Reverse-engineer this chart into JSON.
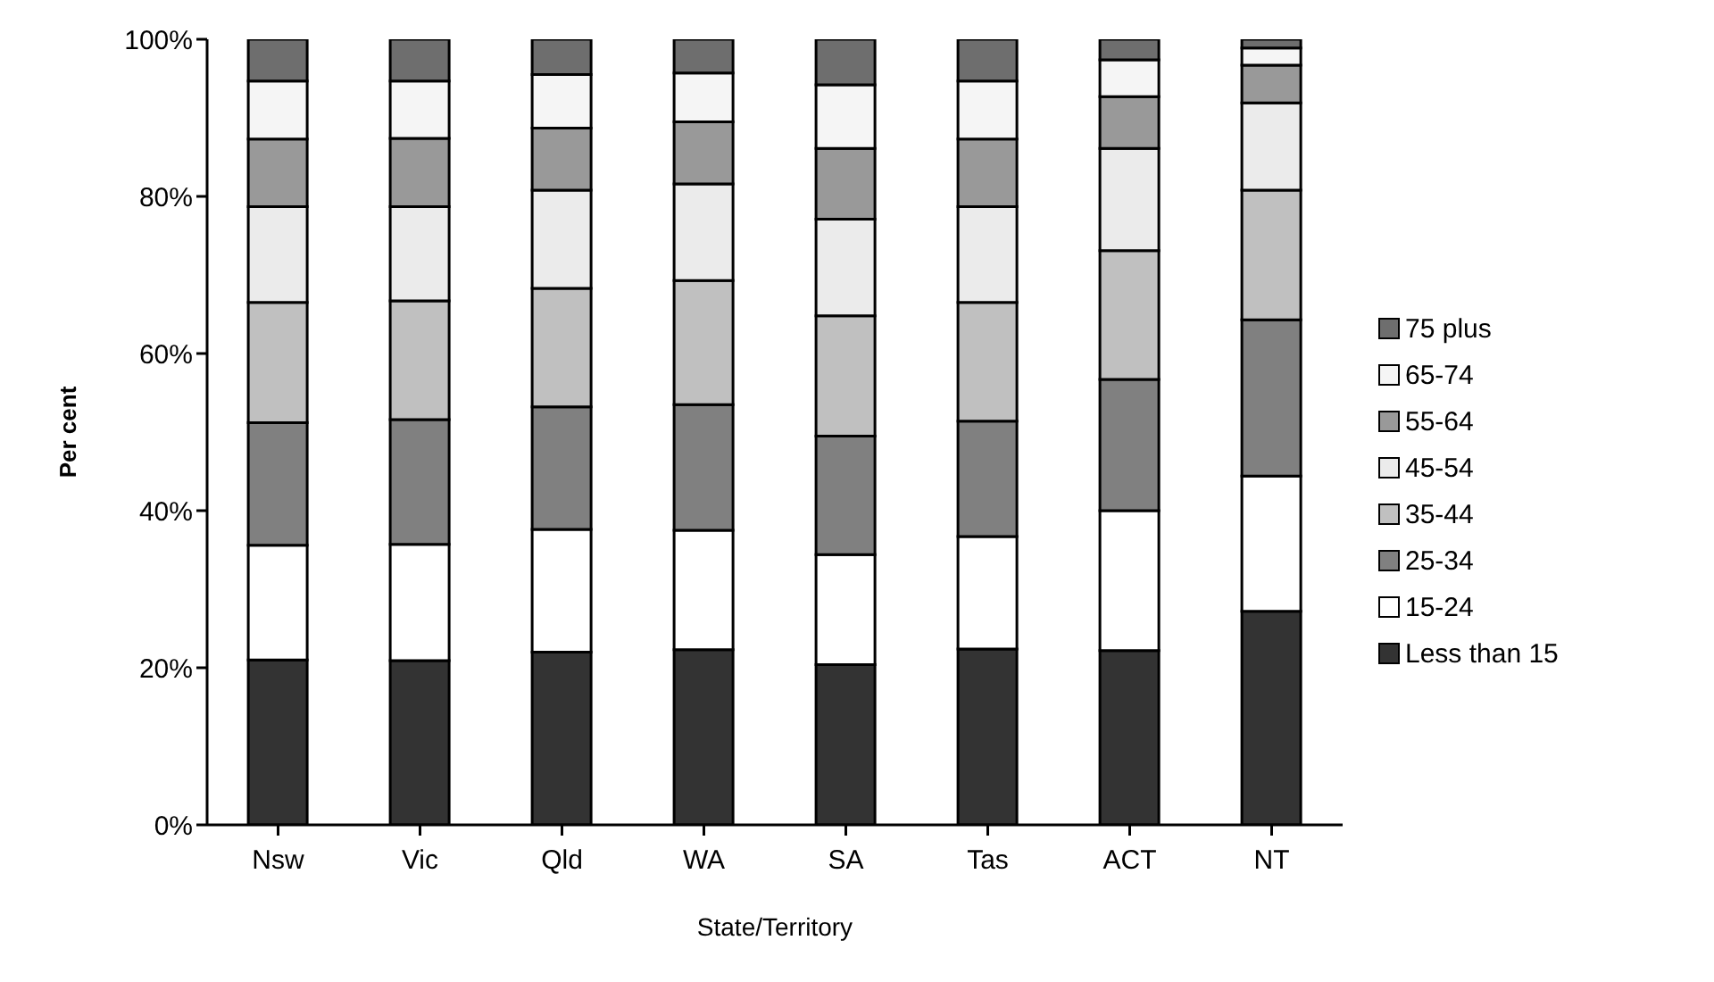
{
  "chart_data": {
    "type": "bar",
    "stacked": true,
    "xlabel": "State/Territory",
    "ylabel": "Per cent",
    "categories": [
      "Nsw",
      "Vic",
      "Qld",
      "WA",
      "SA",
      "Tas",
      "ACT",
      "NT"
    ],
    "ylim": [
      0,
      100
    ],
    "yticks": [
      {
        "value": 0,
        "label": "0%"
      },
      {
        "value": 20,
        "label": "20%"
      },
      {
        "value": 40,
        "label": "40%"
      },
      {
        "value": 60,
        "label": "60%"
      },
      {
        "value": 80,
        "label": "80%"
      },
      {
        "value": 100,
        "label": "100%"
      }
    ],
    "grid": false,
    "legend": "right",
    "series": [
      {
        "name": "Less than 15",
        "color": "#333333",
        "values": [
          21.0,
          20.9,
          22.0,
          22.3,
          20.4,
          22.4,
          22.2,
          27.2
        ]
      },
      {
        "name": "15-24",
        "color": "#ffffff",
        "values": [
          14.6,
          14.8,
          15.6,
          15.2,
          14.0,
          14.3,
          17.8,
          17.2
        ]
      },
      {
        "name": "25-34",
        "color": "#808080",
        "values": [
          15.6,
          15.9,
          15.6,
          16.0,
          15.1,
          14.7,
          16.7,
          19.9
        ]
      },
      {
        "name": "35-44",
        "color": "#c0c0c0",
        "values": [
          15.3,
          15.1,
          15.1,
          15.8,
          15.3,
          15.1,
          16.4,
          16.5
        ]
      },
      {
        "name": "45-54",
        "color": "#ebebeb",
        "values": [
          12.2,
          12.0,
          12.5,
          12.3,
          12.3,
          12.2,
          13.0,
          11.1
        ]
      },
      {
        "name": "55-64",
        "color": "#999999",
        "values": [
          8.6,
          8.7,
          7.9,
          7.9,
          9.0,
          8.6,
          6.6,
          4.8
        ]
      },
      {
        "name": "65-74",
        "color": "#f5f5f5",
        "values": [
          7.4,
          7.3,
          6.8,
          6.2,
          8.1,
          7.4,
          4.7,
          2.2
        ]
      },
      {
        "name": "75 plus",
        "color": "#6e6e6e",
        "values": [
          5.3,
          5.3,
          4.5,
          4.3,
          5.8,
          5.3,
          2.6,
          1.1
        ]
      }
    ]
  }
}
